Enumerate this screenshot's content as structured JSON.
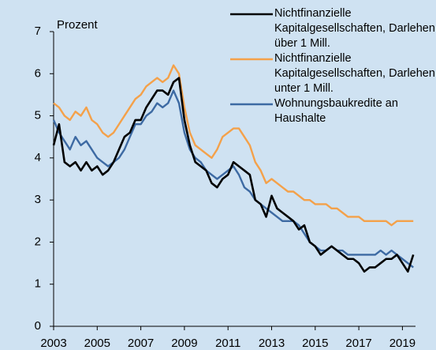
{
  "chart_data": {
    "type": "line",
    "ylabel": "Prozent",
    "x": [
      2003,
      2003.25,
      2003.5,
      2003.75,
      2004,
      2004.25,
      2004.5,
      2004.75,
      2005,
      2005.25,
      2005.5,
      2005.75,
      2006,
      2006.25,
      2006.5,
      2006.75,
      2007,
      2007.25,
      2007.5,
      2007.75,
      2008,
      2008.25,
      2008.5,
      2008.75,
      2009,
      2009.25,
      2009.5,
      2009.75,
      2010,
      2010.25,
      2010.5,
      2010.75,
      2011,
      2011.25,
      2011.5,
      2011.75,
      2012,
      2012.25,
      2012.5,
      2012.75,
      2013,
      2013.25,
      2013.5,
      2013.75,
      2014,
      2014.25,
      2014.5,
      2014.75,
      2015,
      2015.25,
      2015.5,
      2015.75,
      2016,
      2016.25,
      2016.5,
      2016.75,
      2017,
      2017.25,
      2017.5,
      2017.75,
      2018,
      2018.25,
      2018.5,
      2018.75,
      2019,
      2019.25,
      2019.5
    ],
    "series": [
      {
        "name": "Nichtfinanzielle Kapitalgesellschaften, Darlehen über 1 Mill.",
        "color": "#000000",
        "values": [
          4.3,
          4.8,
          3.9,
          3.8,
          3.9,
          3.7,
          3.9,
          3.7,
          3.8,
          3.6,
          3.7,
          3.9,
          4.2,
          4.5,
          4.6,
          4.9,
          4.9,
          5.2,
          5.4,
          5.6,
          5.6,
          5.5,
          5.8,
          5.9,
          4.9,
          4.3,
          3.9,
          3.8,
          3.7,
          3.4,
          3.3,
          3.5,
          3.6,
          3.9,
          3.8,
          3.7,
          3.6,
          3.0,
          2.9,
          2.6,
          3.1,
          2.8,
          2.7,
          2.6,
          2.5,
          2.3,
          2.4,
          2.0,
          1.9,
          1.7,
          1.8,
          1.9,
          1.8,
          1.7,
          1.6,
          1.6,
          1.5,
          1.3,
          1.4,
          1.4,
          1.5,
          1.6,
          1.6,
          1.7,
          1.5,
          1.3,
          1.7
        ]
      },
      {
        "name": "Nichtfinanzielle Kapitalgesellschaften, Darlehen unter 1 Mill.",
        "color": "#f4a14a",
        "values": [
          5.3,
          5.2,
          5.0,
          4.9,
          5.1,
          5.0,
          5.2,
          4.9,
          4.8,
          4.6,
          4.5,
          4.6,
          4.8,
          5.0,
          5.2,
          5.4,
          5.5,
          5.7,
          5.8,
          5.9,
          5.8,
          5.9,
          6.2,
          6.0,
          5.2,
          4.6,
          4.3,
          4.2,
          4.1,
          4.0,
          4.2,
          4.5,
          4.6,
          4.7,
          4.7,
          4.5,
          4.3,
          3.9,
          3.7,
          3.4,
          3.5,
          3.4,
          3.3,
          3.2,
          3.2,
          3.1,
          3.0,
          3.0,
          2.9,
          2.9,
          2.9,
          2.8,
          2.8,
          2.7,
          2.6,
          2.6,
          2.6,
          2.5,
          2.5,
          2.5,
          2.5,
          2.5,
          2.4,
          2.5,
          2.5,
          2.5,
          2.5
        ]
      },
      {
        "name": "Wohnungsbaukredite an Haushalte",
        "color": "#3d6aa3",
        "values": [
          4.9,
          4.6,
          4.4,
          4.2,
          4.5,
          4.3,
          4.4,
          4.2,
          4.0,
          3.9,
          3.8,
          3.9,
          4.0,
          4.2,
          4.5,
          4.8,
          4.8,
          5.0,
          5.1,
          5.3,
          5.2,
          5.3,
          5.6,
          5.3,
          4.6,
          4.2,
          4.0,
          3.9,
          3.7,
          3.6,
          3.5,
          3.6,
          3.7,
          3.8,
          3.6,
          3.3,
          3.2,
          3.0,
          2.9,
          2.8,
          2.7,
          2.6,
          2.5,
          2.5,
          2.5,
          2.4,
          2.2,
          2.0,
          1.9,
          1.8,
          1.8,
          1.9,
          1.8,
          1.8,
          1.7,
          1.7,
          1.7,
          1.7,
          1.7,
          1.7,
          1.8,
          1.7,
          1.8,
          1.7,
          1.6,
          1.5,
          1.4
        ]
      }
    ],
    "xlim": [
      2003,
      2019.6
    ],
    "xticks": [
      2003,
      2005,
      2007,
      2009,
      2011,
      2013,
      2015,
      2017,
      2019
    ],
    "ylim": [
      0,
      7
    ],
    "yticks": [
      0,
      1,
      2,
      3,
      4,
      5,
      6,
      7
    ],
    "grid": false,
    "legend": "top-right"
  }
}
